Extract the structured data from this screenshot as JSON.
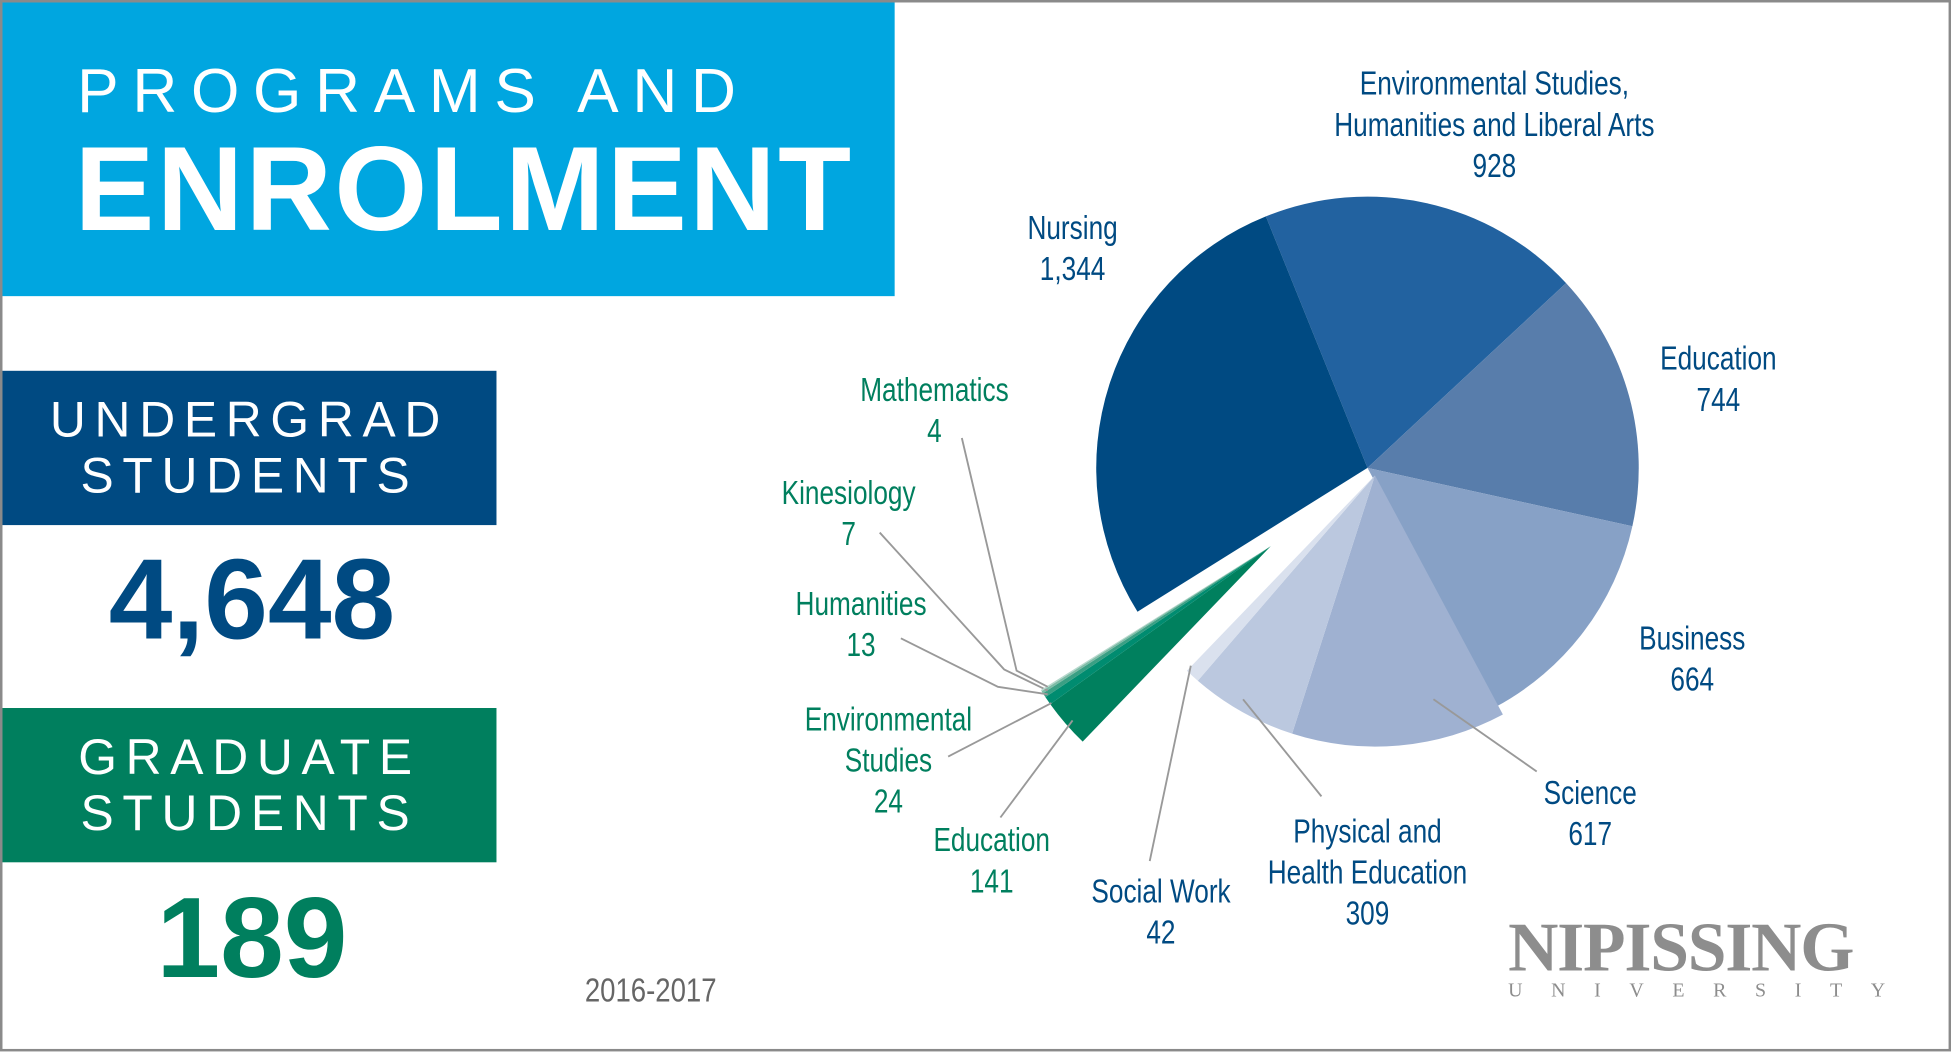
{
  "header": {
    "line1": "PROGRAMS AND",
    "line2": "ENROLMENT"
  },
  "undergrad": {
    "label": "UNDERGRAD STUDENTS",
    "total": "4,648"
  },
  "graduate": {
    "label": "GRADUATE STUDENTS",
    "total": "189"
  },
  "year": "2016-2017",
  "logo": {
    "name": "NIPISSING",
    "sub": "UNIVERSITY"
  },
  "chart_data": {
    "type": "pie",
    "title": "",
    "series": [
      {
        "group": "undergrad",
        "color": "#004a82",
        "slices": [
          {
            "label": [
              "Environmental Studies,",
              "Humanities and Liberal Arts"
            ],
            "value": 928,
            "color": "#2262a0"
          },
          {
            "label": [
              "Education"
            ],
            "value": 744,
            "color": "#587dab"
          },
          {
            "label": [
              "Business"
            ],
            "value": 664,
            "color": "#87a1c6"
          },
          {
            "label": [
              "Science"
            ],
            "value": 617,
            "color": "#9fb1d1"
          },
          {
            "label": [
              "Physical and",
              "Health Education"
            ],
            "value": 309,
            "color": "#bbc8df"
          },
          {
            "label": [
              "Social Work"
            ],
            "value": 42,
            "color": "#dae1ee"
          }
        ]
      },
      {
        "group": "graduate",
        "color": "#007f5e",
        "exploded": true,
        "slices": [
          {
            "label": [
              "Education"
            ],
            "value": 141,
            "color": "#00805e"
          },
          {
            "label": [
              "Environmental",
              "Studies"
            ],
            "value": 24,
            "color": "#008c70"
          },
          {
            "label": [
              "Humanities"
            ],
            "value": 13,
            "color": "#3a9f84"
          },
          {
            "label": [
              "Kinesiology"
            ],
            "value": 7,
            "color": "#7dbba6"
          },
          {
            "label": [
              "Mathematics"
            ],
            "value": 4,
            "color": "#b5d8cc"
          }
        ]
      },
      {
        "group": "undergrad",
        "color": "#004a82",
        "slices": [
          {
            "label": [
              "Nursing"
            ],
            "value": 1344,
            "color": "#004a82"
          }
        ]
      }
    ]
  }
}
